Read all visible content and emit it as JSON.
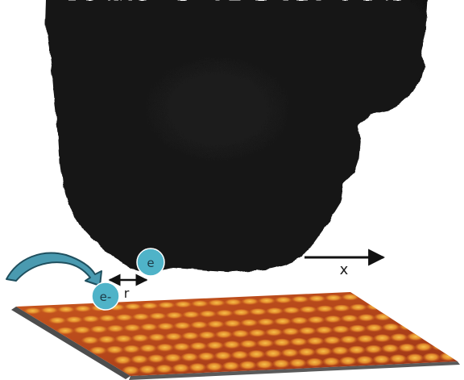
{
  "labels": {
    "electron_on_tip": "e",
    "electron_incoming": "e-",
    "distance": "r",
    "axis": "x"
  },
  "colors": {
    "tip": "#161616",
    "electron": "#4fb3c8",
    "arrow": "#4a9ab0",
    "surface_base": "#b2401a",
    "surface_highlight": "#f0b33a"
  }
}
